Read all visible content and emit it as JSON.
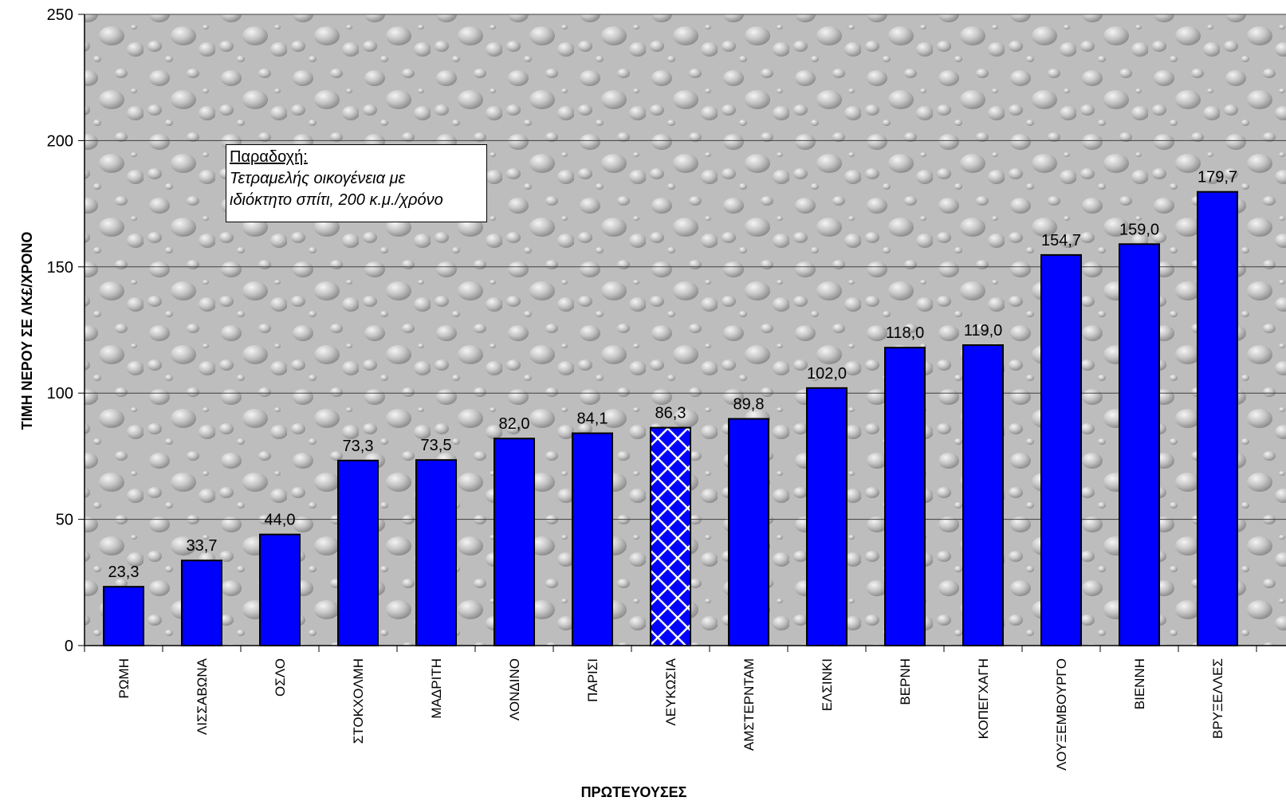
{
  "chart_data": {
    "type": "bar",
    "categories": [
      "ΡΩΜΗ",
      "ΛΙΣΣΑΒΩΝΑ",
      "ΟΣΛΟ",
      "ΣΤΟΚΧΟΛΜΗ",
      "ΜΑΔΡΙΤΗ",
      "ΛΟΝΔΙΝΟ",
      "ΠΑΡΙΣΙ",
      "ΛΕΥΚΩΣΙΑ",
      "ΑΜΣΤΕΡΝΤΑΜ",
      "ΕΛΣΙΝΚΙ",
      "ΒΕΡΝΗ",
      "ΚΟΠΕΓΧΑΓΗ",
      "ΛΟΥΞΕΜΒΟΥΡΓΟ",
      "ΒΙΕΝΝΗ",
      "ΒΡΥΞΕΛΛΕΣ"
    ],
    "values": [
      23.3,
      33.7,
      44.0,
      73.3,
      73.5,
      82.0,
      84.1,
      86.3,
      89.8,
      102.0,
      118.0,
      119.0,
      154.7,
      159.0,
      179.7
    ],
    "data_labels": [
      "23,3",
      "33,7",
      "44,0",
      "73,3",
      "73,5",
      "82,0",
      "84,1",
      "86,3",
      "89,8",
      "102,0",
      "118,0",
      "119,0",
      "154,7",
      "159,0",
      "179,7"
    ],
    "highlighted_category": "ΛΕΥΚΩΣΙΑ",
    "xlabel": "ΠΡΩΤΕΥΟΥΣΕΣ",
    "ylabel": "ΤΙΜΗ ΝΕΡΟΥ ΣΕ ΛΚ£/ΧΡΟΝΟ",
    "ylim": [
      0,
      250
    ],
    "yticks": [
      0,
      50,
      100,
      150,
      200,
      250
    ],
    "grid": true,
    "bar_color": "#0000ff",
    "annotation": {
      "heading": "Παραδοχή:",
      "lines": [
        "Τετραμελής οικογένεια με",
        "ιδιόκτητο σπίτι, 200 κ.μ./χρόνο"
      ]
    }
  }
}
